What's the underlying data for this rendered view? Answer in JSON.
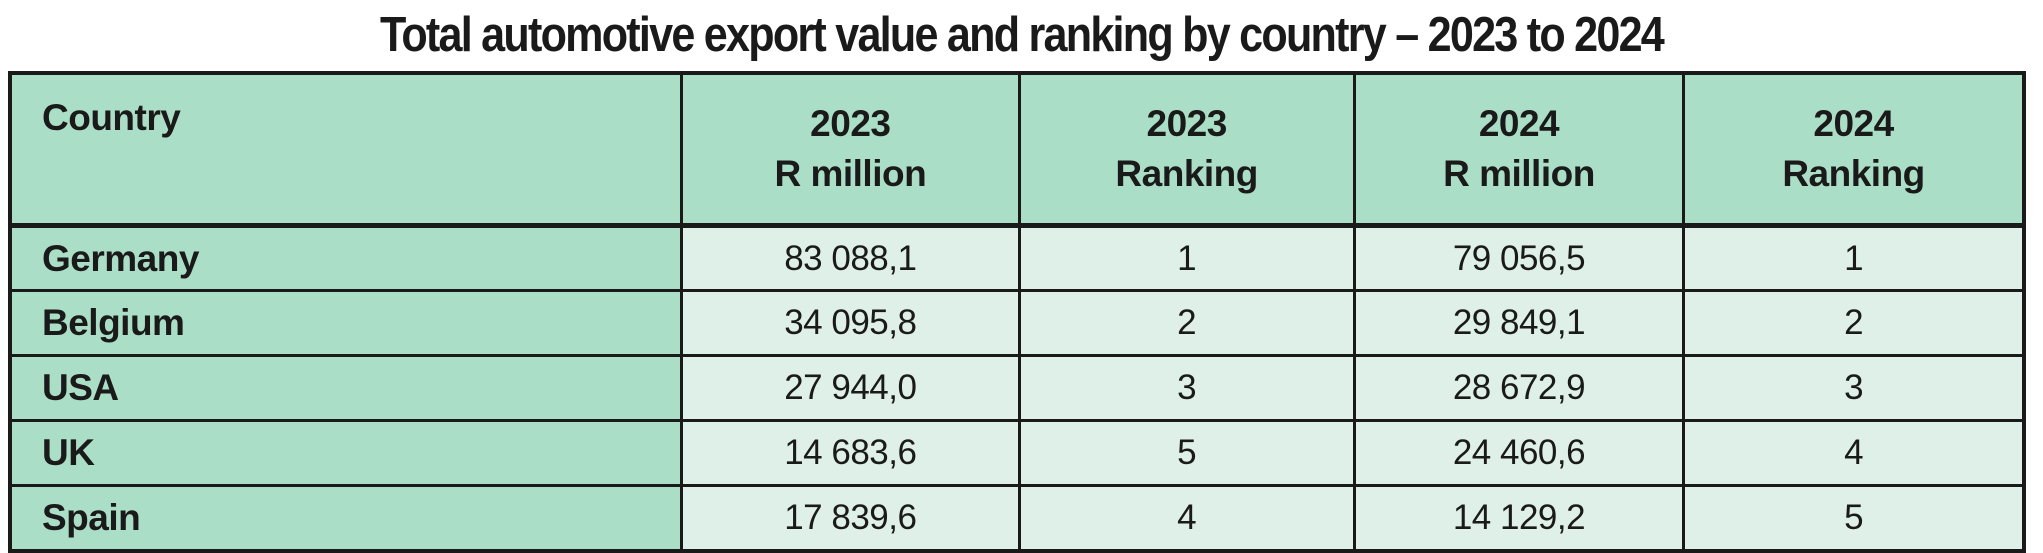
{
  "title": "Total automotive export value and ranking by country – 2023 to 2024",
  "colors": {
    "header_green": "#abdec6",
    "value_cell_green": "#def0e7",
    "border_black": "#1a1a1a",
    "background": "#ffffff"
  },
  "table": {
    "columns": [
      {
        "line1": "Country",
        "line2": ""
      },
      {
        "line1": "2023",
        "line2": "R million"
      },
      {
        "line1": "2023",
        "line2": "Ranking"
      },
      {
        "line1": "2024",
        "line2": "R million"
      },
      {
        "line1": "2024",
        "line2": "Ranking"
      }
    ],
    "rows": [
      {
        "country": "Germany",
        "v2023": "83 088,1",
        "r2023": "1",
        "v2024": "79 056,5",
        "r2024": "1"
      },
      {
        "country": "Belgium",
        "v2023": "34 095,8",
        "r2023": "2",
        "v2024": "29 849,1",
        "r2024": "2"
      },
      {
        "country": "USA",
        "v2023": "27 944,0",
        "r2023": "3",
        "v2024": "28 672,9",
        "r2024": "3"
      },
      {
        "country": "UK",
        "v2023": "14 683,6",
        "r2023": "5",
        "v2024": "24 460,6",
        "r2024": "4"
      },
      {
        "country": "Spain",
        "v2023": "17 839,6",
        "r2023": "4",
        "v2024": "14 129,2",
        "r2024": "5"
      }
    ]
  },
  "chart_data": {
    "type": "table",
    "title": "Total automotive export value and ranking by country – 2023 to 2024",
    "columns": [
      "Country",
      "2023 R million",
      "2023 Ranking",
      "2024 R million",
      "2024 Ranking"
    ],
    "rows": [
      [
        "Germany",
        83088.1,
        1,
        79056.5,
        1
      ],
      [
        "Belgium",
        34095.8,
        2,
        29849.1,
        2
      ],
      [
        "USA",
        27944.0,
        3,
        28672.9,
        3
      ],
      [
        "UK",
        14683.6,
        5,
        24460.6,
        4
      ],
      [
        "Spain",
        17839.6,
        4,
        14129.2,
        5
      ]
    ],
    "value_unit": "R million",
    "number_format": "thousands separated by space, decimal comma",
    "layout": "header row and country column shaded green; value cells light green; black grid borders"
  }
}
